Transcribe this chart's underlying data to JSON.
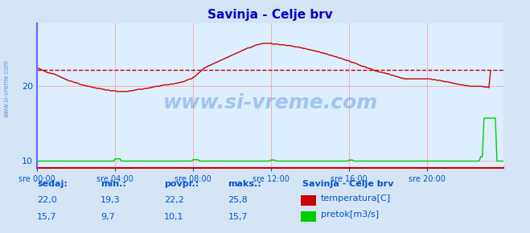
{
  "title": "Savinja - Celje brv",
  "title_color": "#0000cc",
  "bg_color": "#d4e4f4",
  "plot_bg_color": "#ddeeff",
  "grid_color": "#ff9999",
  "axis_label_color": "#0055cc",
  "ylabel_left": "",
  "yticks": [
    10,
    20
  ],
  "ymin": 9.0,
  "ymax": 28.5,
  "xtick_labels": [
    "sre 00:00",
    "sre 04:00",
    "sre 08:00",
    "sre 12:00",
    "sre 16:00",
    "sre 20:00"
  ],
  "xtick_positions": [
    0,
    48,
    96,
    144,
    192,
    240
  ],
  "xmax": 287,
  "avg_line_value": 22.2,
  "avg_line_color": "#cc0000",
  "temp_color": "#cc0000",
  "flow_color": "#00cc00",
  "left_spine_color": "#6666ff",
  "bottom_spine_color": "#cc0000",
  "watermark": "www.si-vreme.com",
  "watermark_color": "#3377cc",
  "watermark_alpha": 0.4,
  "sidebar_text": "www.si-vreme.com",
  "sidebar_color": "#3377cc",
  "legend_title": "Savinja - Celje brv",
  "legend_title_color": "#0055cc",
  "legend_items": [
    "temperatura[C]",
    "pretok[m3/s]"
  ],
  "legend_colors": [
    "#cc0000",
    "#00cc00"
  ],
  "stats_headers": [
    "sedaj:",
    "min.:",
    "povpr.:",
    "maks.:"
  ],
  "stats_temp": [
    "22,0",
    "19,3",
    "22,2",
    "25,8"
  ],
  "stats_flow": [
    "15,7",
    "9,7",
    "10,1",
    "15,7"
  ],
  "stats_color": "#0055cc",
  "n_points": 288,
  "temp_data": [
    22.5,
    22.4,
    22.3,
    22.2,
    22.1,
    22.0,
    21.9,
    21.8,
    21.8,
    21.7,
    21.7,
    21.6,
    21.5,
    21.4,
    21.3,
    21.2,
    21.1,
    21.0,
    20.9,
    20.8,
    20.7,
    20.7,
    20.6,
    20.5,
    20.5,
    20.4,
    20.3,
    20.2,
    20.2,
    20.1,
    20.1,
    20.0,
    20.0,
    19.9,
    19.9,
    19.8,
    19.8,
    19.7,
    19.7,
    19.7,
    19.6,
    19.6,
    19.5,
    19.5,
    19.5,
    19.4,
    19.4,
    19.4,
    19.4,
    19.3,
    19.3,
    19.3,
    19.3,
    19.3,
    19.3,
    19.3,
    19.3,
    19.4,
    19.4,
    19.4,
    19.5,
    19.5,
    19.6,
    19.6,
    19.6,
    19.6,
    19.7,
    19.7,
    19.7,
    19.8,
    19.8,
    19.9,
    19.9,
    20.0,
    20.0,
    20.0,
    20.1,
    20.1,
    20.2,
    20.2,
    20.2,
    20.2,
    20.3,
    20.3,
    20.3,
    20.4,
    20.4,
    20.5,
    20.5,
    20.6,
    20.6,
    20.7,
    20.8,
    20.9,
    21.0,
    21.0,
    21.2,
    21.3,
    21.5,
    21.7,
    21.9,
    22.1,
    22.3,
    22.5,
    22.6,
    22.7,
    22.8,
    22.9,
    23.0,
    23.1,
    23.2,
    23.3,
    23.4,
    23.5,
    23.6,
    23.7,
    23.8,
    23.9,
    24.0,
    24.1,
    24.2,
    24.3,
    24.4,
    24.5,
    24.6,
    24.7,
    24.8,
    24.9,
    25.0,
    25.1,
    25.2,
    25.2,
    25.3,
    25.4,
    25.5,
    25.6,
    25.6,
    25.7,
    25.7,
    25.8,
    25.8,
    25.8,
    25.8,
    25.8,
    25.8,
    25.7,
    25.7,
    25.7,
    25.7,
    25.6,
    25.6,
    25.6,
    25.6,
    25.5,
    25.5,
    25.5,
    25.5,
    25.4,
    25.4,
    25.3,
    25.3,
    25.3,
    25.2,
    25.2,
    25.1,
    25.1,
    25.0,
    25.0,
    24.9,
    24.9,
    24.8,
    24.8,
    24.7,
    24.7,
    24.6,
    24.5,
    24.5,
    24.4,
    24.4,
    24.3,
    24.2,
    24.2,
    24.1,
    24.0,
    24.0,
    23.9,
    23.8,
    23.8,
    23.7,
    23.6,
    23.5,
    23.5,
    23.4,
    23.3,
    23.2,
    23.2,
    23.1,
    23.0,
    22.9,
    22.8,
    22.7,
    22.7,
    22.6,
    22.5,
    22.4,
    22.4,
    22.3,
    22.2,
    22.1,
    22.0,
    22.0,
    21.9,
    21.9,
    21.8,
    21.8,
    21.7,
    21.7,
    21.6,
    21.5,
    21.5,
    21.4,
    21.3,
    21.3,
    21.2,
    21.1,
    21.1,
    21.0,
    21.0,
    21.0,
    21.0,
    21.0,
    21.0,
    21.0,
    21.0,
    21.0,
    21.0,
    21.0,
    21.0,
    21.0,
    21.0,
    21.0,
    21.0,
    21.0,
    20.9,
    20.9,
    20.9,
    20.8,
    20.8,
    20.8,
    20.7,
    20.7,
    20.6,
    20.6,
    20.6,
    20.5,
    20.5,
    20.4,
    20.4,
    20.3,
    20.3,
    20.2,
    20.2,
    20.2,
    20.1,
    20.1,
    20.1,
    20.0,
    20.0,
    20.0,
    20.0,
    20.0,
    20.0,
    20.0,
    20.0,
    20.0,
    19.9,
    19.9,
    19.9,
    19.8,
    22.0
  ],
  "flow_data_base": 9.9,
  "flow_spike_index": 275,
  "flow_spike_value": 15.7
}
